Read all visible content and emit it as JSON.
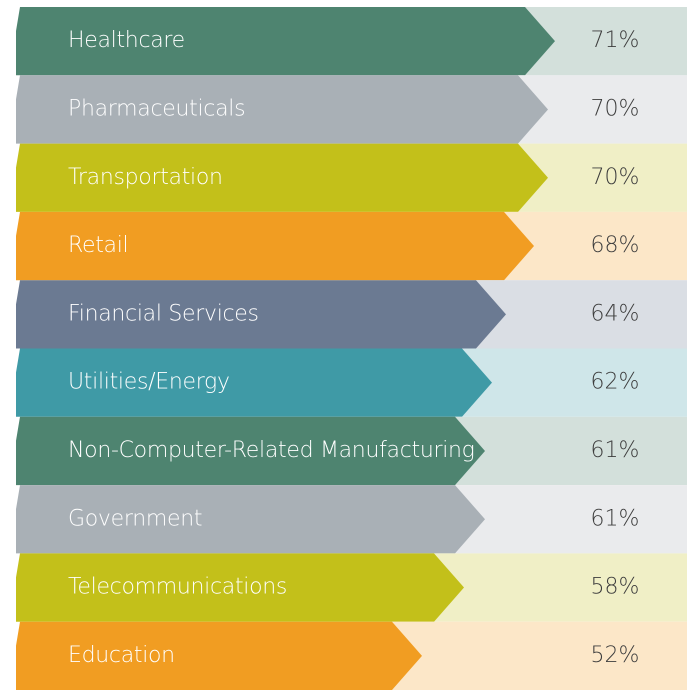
{
  "chart_data": {
    "type": "bar",
    "categories": [
      "Healthcare",
      "Pharmaceuticals",
      "Transportation",
      "Retail",
      "Financial Services",
      "Utilities/Energy",
      "Non-Computer-Related Manufacturing",
      "Government",
      "Telecommunications",
      "Education"
    ],
    "values": [
      71,
      70,
      70,
      68,
      64,
      62,
      61,
      61,
      58,
      52
    ],
    "value_labels": [
      "71%",
      "70%",
      "70%",
      "68%",
      "64%",
      "62%",
      "61%",
      "61%",
      "58%",
      "52%"
    ],
    "colors": [
      "#4e8470",
      "#a9b0b6",
      "#c3c01a",
      "#f19d22",
      "#6b7a92",
      "#3f9aa6",
      "#4e8470",
      "#a9b0b6",
      "#c3c01a",
      "#f19d22"
    ]
  }
}
